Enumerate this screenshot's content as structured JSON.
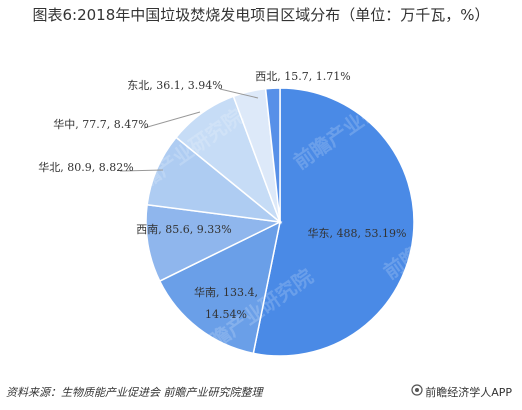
{
  "chart_data": {
    "type": "pie",
    "title": "图表6:2018年中国垃圾焚烧发电项目区域分布（单位：万千瓦，%）",
    "slices": [
      {
        "name": "华东",
        "value": 488,
        "percent": 53.19,
        "label": "华东, 488, 53.19%",
        "color": "#4a8ae6"
      },
      {
        "name": "华南",
        "value": 133.4,
        "percent": 14.54,
        "label_lines": [
          "华南, 133.4,",
          "14.54%"
        ],
        "color": "#6a9fe8"
      },
      {
        "name": "西南",
        "value": 85.6,
        "percent": 9.33,
        "label": "西南, 85.6, 9.33%",
        "color": "#8fb6ed"
      },
      {
        "name": "华北",
        "value": 80.9,
        "percent": 8.82,
        "label": "华北, 80.9, 8.82%",
        "color": "#aeccf2"
      },
      {
        "name": "华中",
        "value": 77.7,
        "percent": 8.47,
        "label": "华中, 77.7, 8.47%",
        "color": "#c6dcf6"
      },
      {
        "name": "东北",
        "value": 36.1,
        "percent": 3.94,
        "label": "东北, 36.1, 3.94%",
        "color": "#dde9f9"
      },
      {
        "name": "西北",
        "value": 15.7,
        "percent": 1.71,
        "label": "西北, 15.7, 1.71%",
        "color": "#5790e8"
      }
    ]
  },
  "footer": {
    "source": "资料来源：生物质能产业促进会  前瞻产业研究院整理",
    "brand": "前瞻经济学人APP"
  },
  "watermark_text": "前瞻产业研究院"
}
